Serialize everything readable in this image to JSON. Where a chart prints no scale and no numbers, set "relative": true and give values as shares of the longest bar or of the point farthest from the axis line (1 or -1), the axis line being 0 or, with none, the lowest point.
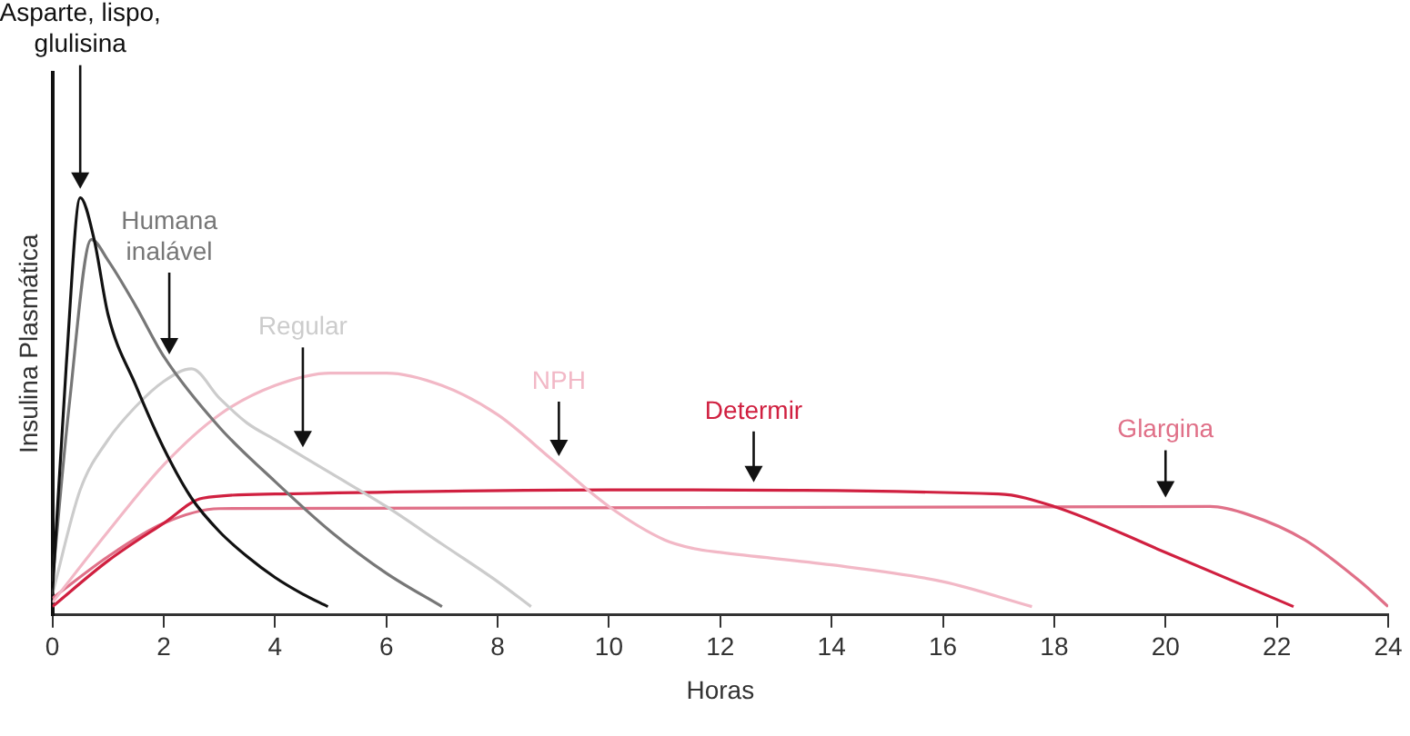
{
  "chart_data": {
    "type": "line",
    "relative": true,
    "xlabel": "Horas",
    "ylabel": "Insulina Plasmática",
    "xlim": [
      0,
      24
    ],
    "xticks": [
      0,
      2,
      4,
      6,
      8,
      10,
      12,
      14,
      16,
      18,
      20,
      22,
      24
    ],
    "grid": false,
    "legend": false,
    "marker": "none",
    "line_style": "solid",
    "series": [
      {
        "name": "Asparte, lispo,\nglulisina",
        "color": "#111111",
        "x": [
          0,
          0.25,
          0.5,
          0.75,
          1,
          1.5,
          2,
          2.5,
          3,
          3.5,
          4,
          4.5,
          4.95
        ],
        "values": [
          0.05,
          0.6,
          1,
          0.9,
          0.72,
          0.55,
          0.4,
          0.28,
          0.2,
          0.14,
          0.09,
          0.05,
          0.02
        ]
      },
      {
        "name": "Humana\ninalável",
        "color": "#777777",
        "x": [
          0,
          0.3,
          0.7,
          1,
          1.5,
          2,
          3,
          4,
          5,
          6,
          7
        ],
        "values": [
          0.08,
          0.5,
          0.9,
          0.85,
          0.74,
          0.62,
          0.45,
          0.32,
          0.2,
          0.1,
          0.02
        ]
      },
      {
        "name": "Regular",
        "color": "#cccccc",
        "x": [
          0,
          0.5,
          1,
          1.5,
          2,
          2.5,
          3,
          3.5,
          4,
          5,
          6,
          7,
          8,
          8.6
        ],
        "values": [
          0.05,
          0.3,
          0.42,
          0.5,
          0.56,
          0.59,
          0.52,
          0.46,
          0.42,
          0.34,
          0.26,
          0.17,
          0.08,
          0.02
        ]
      },
      {
        "name": "NPH",
        "color": "#f2b8c6",
        "x": [
          0,
          1,
          2,
          3,
          4,
          5,
          6,
          7,
          8,
          9,
          10,
          11,
          11.5,
          12,
          14,
          16,
          17.6
        ],
        "values": [
          0.03,
          0.2,
          0.36,
          0.48,
          0.55,
          0.58,
          0.58,
          0.55,
          0.48,
          0.37,
          0.26,
          0.18,
          0.16,
          0.15,
          0.12,
          0.08,
          0.02
        ]
      },
      {
        "name": "Determir",
        "color": "#d02040",
        "x": [
          0,
          1,
          2,
          2.7,
          4,
          10,
          17,
          18,
          20,
          22.3
        ],
        "values": [
          0.02,
          0.13,
          0.22,
          0.28,
          0.29,
          0.3,
          0.29,
          0.26,
          0.15,
          0.02
        ]
      },
      {
        "name": "Glargina",
        "color": "#e07088",
        "x": [
          0,
          1,
          2,
          3,
          20.8,
          21.5,
          22.5,
          23.5,
          24
        ],
        "values": [
          0.04,
          0.14,
          0.22,
          0.255,
          0.26,
          0.24,
          0.18,
          0.08,
          0.02
        ]
      }
    ]
  }
}
